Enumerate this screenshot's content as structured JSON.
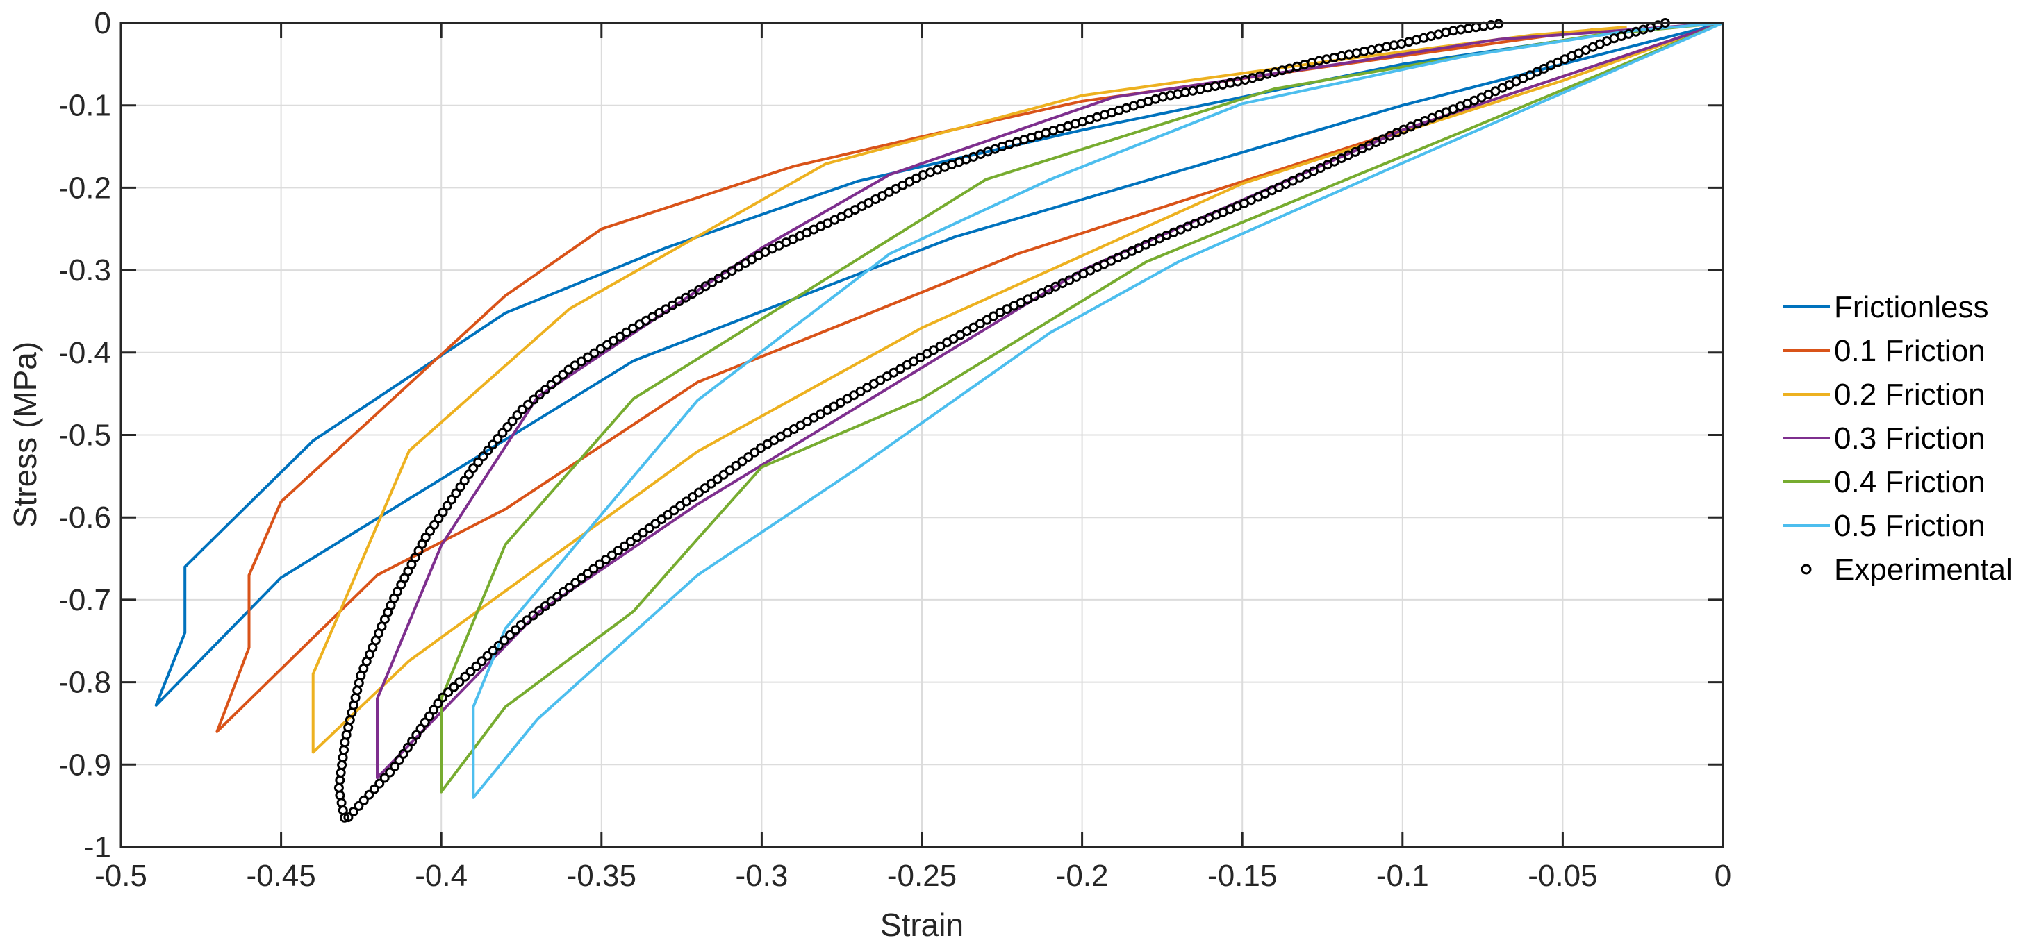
{
  "chart_data": {
    "type": "line",
    "title": "",
    "xlabel": "Strain",
    "ylabel": "Stress (MPa)",
    "xlim": [
      -0.5,
      0
    ],
    "ylim": [
      -1,
      0
    ],
    "xticks": [
      -0.5,
      -0.45,
      -0.4,
      -0.35,
      -0.3,
      -0.25,
      -0.2,
      -0.15,
      -0.1,
      -0.05,
      0
    ],
    "yticks": [
      0,
      -0.1,
      -0.2,
      -0.3,
      -0.4,
      -0.5,
      -0.6,
      -0.7,
      -0.8,
      -0.9,
      -1
    ],
    "xtick_labels": [
      "-0.5",
      "-0.45",
      "-0.4",
      "-0.35",
      "-0.3",
      "-0.25",
      "-0.2",
      "-0.15",
      "-0.1",
      "-0.05",
      "0"
    ],
    "ytick_labels": [
      "0",
      "-0.1",
      "-0.2",
      "-0.3",
      "-0.4",
      "-0.5",
      "-0.6",
      "-0.7",
      "-0.8",
      "-0.9",
      "-1"
    ],
    "grid": true,
    "legend_position": "right",
    "series": [
      {
        "name": "Frictionless",
        "color": "#0072BD",
        "style": "line",
        "points": [
          [
            0,
            0
          ],
          [
            -0.1,
            -0.1
          ],
          [
            -0.24,
            -0.26
          ],
          [
            -0.34,
            -0.41
          ],
          [
            -0.45,
            -0.673
          ],
          [
            -0.489,
            -0.828
          ],
          [
            -0.48,
            -0.74
          ],
          [
            -0.48,
            -0.66
          ],
          [
            -0.44,
            -0.507
          ],
          [
            -0.38,
            -0.352
          ],
          [
            -0.33,
            -0.273
          ],
          [
            -0.27,
            -0.192
          ],
          [
            -0.2,
            -0.13
          ],
          [
            -0.1,
            -0.05
          ],
          [
            -0.03,
            -0.01
          ],
          [
            0,
            0
          ]
        ]
      },
      {
        "name": "0.1 Friction",
        "color": "#D95319",
        "style": "line",
        "points": [
          [
            0,
            0
          ],
          [
            -0.1,
            -0.13
          ],
          [
            -0.22,
            -0.28
          ],
          [
            -0.32,
            -0.436
          ],
          [
            -0.38,
            -0.59
          ],
          [
            -0.42,
            -0.67
          ],
          [
            -0.47,
            -0.86
          ],
          [
            -0.46,
            -0.758
          ],
          [
            -0.46,
            -0.67
          ],
          [
            -0.45,
            -0.581
          ],
          [
            -0.38,
            -0.331
          ],
          [
            -0.35,
            -0.25
          ],
          [
            -0.29,
            -0.174
          ],
          [
            -0.25,
            -0.138
          ],
          [
            -0.2,
            -0.095
          ],
          [
            -0.1,
            -0.04
          ],
          [
            -0.04,
            -0.008
          ]
        ]
      },
      {
        "name": "0.2 Friction",
        "color": "#EDB120",
        "style": "line",
        "points": [
          [
            0,
            0
          ],
          [
            -0.05,
            -0.07
          ],
          [
            -0.15,
            -0.195
          ],
          [
            -0.25,
            -0.37
          ],
          [
            -0.32,
            -0.52
          ],
          [
            -0.41,
            -0.774
          ],
          [
            -0.44,
            -0.885
          ],
          [
            -0.44,
            -0.79
          ],
          [
            -0.41,
            -0.519
          ],
          [
            -0.36,
            -0.347
          ],
          [
            -0.28,
            -0.171
          ],
          [
            -0.2,
            -0.088
          ],
          [
            -0.12,
            -0.045
          ],
          [
            -0.06,
            -0.015
          ],
          [
            -0.03,
            -0.005
          ]
        ]
      },
      {
        "name": "0.3 Friction",
        "color": "#7E2F8E",
        "style": "line",
        "points": [
          [
            0,
            0
          ],
          [
            -0.1,
            -0.13
          ],
          [
            -0.2,
            -0.3
          ],
          [
            -0.32,
            -0.584
          ],
          [
            -0.37,
            -0.716
          ],
          [
            -0.42,
            -0.916
          ],
          [
            -0.42,
            -0.82
          ],
          [
            -0.4,
            -0.634
          ],
          [
            -0.37,
            -0.454
          ],
          [
            -0.3,
            -0.273
          ],
          [
            -0.26,
            -0.184
          ],
          [
            -0.19,
            -0.09
          ],
          [
            -0.12,
            -0.05
          ],
          [
            -0.07,
            -0.02
          ],
          [
            0,
            0
          ]
        ]
      },
      {
        "name": "0.4 Friction",
        "color": "#77AC30",
        "style": "line",
        "points": [
          [
            0,
            0
          ],
          [
            -0.08,
            -0.13
          ],
          [
            -0.18,
            -0.29
          ],
          [
            -0.25,
            -0.456
          ],
          [
            -0.3,
            -0.539
          ],
          [
            -0.32,
            -0.626
          ],
          [
            -0.34,
            -0.714
          ],
          [
            -0.38,
            -0.83
          ],
          [
            -0.4,
            -0.933
          ],
          [
            -0.4,
            -0.82
          ],
          [
            -0.38,
            -0.633
          ],
          [
            -0.34,
            -0.456
          ],
          [
            -0.23,
            -0.19
          ],
          [
            -0.14,
            -0.08
          ],
          [
            -0.08,
            -0.04
          ],
          [
            -0.04,
            -0.015
          ],
          [
            0,
            0
          ]
        ]
      },
      {
        "name": "0.5 Friction",
        "color": "#4DBEEE",
        "style": "line",
        "points": [
          [
            0,
            0
          ],
          [
            -0.1,
            -0.17
          ],
          [
            -0.17,
            -0.29
          ],
          [
            -0.21,
            -0.376
          ],
          [
            -0.27,
            -0.54
          ],
          [
            -0.32,
            -0.67
          ],
          [
            -0.37,
            -0.845
          ],
          [
            -0.39,
            -0.94
          ],
          [
            -0.39,
            -0.83
          ],
          [
            -0.38,
            -0.735
          ],
          [
            -0.32,
            -0.458
          ],
          [
            -0.26,
            -0.28
          ],
          [
            -0.21,
            -0.19
          ],
          [
            -0.15,
            -0.098
          ],
          [
            -0.08,
            -0.04
          ],
          [
            -0.03,
            -0.01
          ],
          [
            0,
            0
          ]
        ]
      },
      {
        "name": "Experimental",
        "color": "#000000",
        "style": "marker",
        "points": [
          [
            -0.018,
            0
          ],
          [
            -0.035,
            -0.02
          ],
          [
            -0.05,
            -0.045
          ],
          [
            -0.075,
            -0.09
          ],
          [
            -0.1,
            -0.13
          ],
          [
            -0.125,
            -0.175
          ],
          [
            -0.15,
            -0.22
          ],
          [
            -0.175,
            -0.26
          ],
          [
            -0.2,
            -0.305
          ],
          [
            -0.225,
            -0.35
          ],
          [
            -0.25,
            -0.405
          ],
          [
            -0.275,
            -0.46
          ],
          [
            -0.3,
            -0.515
          ],
          [
            -0.325,
            -0.585
          ],
          [
            -0.35,
            -0.655
          ],
          [
            -0.375,
            -0.73
          ],
          [
            -0.4,
            -0.82
          ],
          [
            -0.415,
            -0.905
          ],
          [
            -0.43,
            -0.968
          ],
          [
            -0.432,
            -0.93
          ],
          [
            -0.43,
            -0.87
          ],
          [
            -0.425,
            -0.79
          ],
          [
            -0.415,
            -0.7
          ],
          [
            -0.405,
            -0.625
          ],
          [
            -0.39,
            -0.54
          ],
          [
            -0.375,
            -0.47
          ],
          [
            -0.36,
            -0.42
          ],
          [
            -0.34,
            -0.37
          ],
          [
            -0.32,
            -0.325
          ],
          [
            -0.3,
            -0.28
          ],
          [
            -0.275,
            -0.235
          ],
          [
            -0.25,
            -0.185
          ],
          [
            -0.225,
            -0.15
          ],
          [
            -0.2,
            -0.12
          ],
          [
            -0.175,
            -0.09
          ],
          [
            -0.15,
            -0.07
          ],
          [
            -0.125,
            -0.045
          ],
          [
            -0.1,
            -0.025
          ],
          [
            -0.085,
            -0.01
          ],
          [
            -0.068,
            0
          ]
        ]
      }
    ]
  }
}
